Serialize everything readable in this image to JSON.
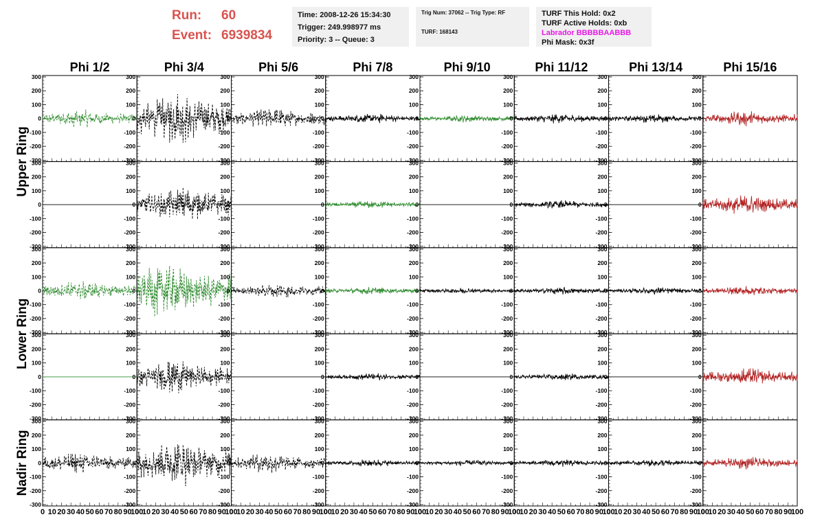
{
  "header": {
    "run_label": "Run:",
    "run_value": "60",
    "event_label": "Event:",
    "event_value": "6939834",
    "time_text": "Time: 2008-12-26 15:34:30",
    "trigger_text": "Trigger: 249.998977 ms",
    "priority_text": "Priority: 3 -- Queue: 3",
    "trig_num_text": "Trig Num: 37062 -- Trig Type: RF",
    "turf_text": "TURF: 168143",
    "turf_hold_text": "TURF This Hold: 0x2",
    "turf_active_text": "TURF Active Holds: 0xb",
    "labrador_text": "Labrador BBBBBAABBB",
    "phi_mask_text": "Phi Mask: 0x3f"
  },
  "chart_data": {
    "type": "line",
    "title": "",
    "columns": [
      "Phi 1/2",
      "Phi 3/4",
      "Phi 5/6",
      "Phi 7/8",
      "Phi 9/10",
      "Phi 11/12",
      "Phi 13/14",
      "Phi 15/16"
    ],
    "rows": [
      "Upper Ring",
      "Upper Ring",
      "Lower Ring",
      "Lower Ring",
      "Nadir Ring"
    ],
    "row_labels": [
      {
        "label": "Upper Ring",
        "rows": [
          0,
          1
        ]
      },
      {
        "label": "Lower Ring",
        "rows": [
          2,
          3
        ]
      },
      {
        "label": "Nadir Ring",
        "rows": [
          4
        ]
      }
    ],
    "xlim": [
      0,
      100
    ],
    "ylim": [
      -310,
      310
    ],
    "x_ticks": [
      "0",
      "10",
      "20",
      "30",
      "40",
      "50",
      "60",
      "70",
      "80",
      "90",
      "100"
    ],
    "y_ticks": [
      "300",
      "200",
      "100",
      "0",
      "-100",
      "-200",
      "-300"
    ],
    "colors": {
      "black": "#000000",
      "green": "#2e8b2e",
      "red": "#b22222",
      "accent": "#d9534f"
    },
    "panels": [
      {
        "row": 0,
        "col": 0,
        "amp": 70,
        "color": "green",
        "dashed": true,
        "peak": 40
      },
      {
        "row": 0,
        "col": 1,
        "amp": 220,
        "color": "black",
        "dashed": true,
        "peak": 40
      },
      {
        "row": 0,
        "col": 2,
        "amp": 90,
        "color": "black",
        "dashed": true,
        "peak": 45
      },
      {
        "row": 0,
        "col": 3,
        "amp": 40,
        "color": "black",
        "dashed": false,
        "peak": 50
      },
      {
        "row": 0,
        "col": 4,
        "amp": 30,
        "color": "green",
        "dashed": false,
        "peak": 50
      },
      {
        "row": 0,
        "col": 5,
        "amp": 40,
        "color": "black",
        "dashed": false,
        "peak": 50
      },
      {
        "row": 0,
        "col": 6,
        "amp": 35,
        "color": "black",
        "dashed": false,
        "peak": 50
      },
      {
        "row": 0,
        "col": 7,
        "amp": 60,
        "color": "red",
        "dashed": false,
        "peak": 45
      },
      {
        "row": 1,
        "col": 0,
        "amp": 0,
        "color": "black",
        "dashed": false,
        "peak": 50
      },
      {
        "row": 1,
        "col": 1,
        "amp": 150,
        "color": "black",
        "dashed": true,
        "peak": 50
      },
      {
        "row": 1,
        "col": 2,
        "amp": 0,
        "color": "black",
        "dashed": false,
        "peak": 50
      },
      {
        "row": 1,
        "col": 3,
        "amp": 30,
        "color": "green",
        "dashed": false,
        "peak": 50
      },
      {
        "row": 1,
        "col": 4,
        "amp": 0,
        "color": "black",
        "dashed": false,
        "peak": 50
      },
      {
        "row": 1,
        "col": 5,
        "amp": 35,
        "color": "black",
        "dashed": false,
        "peak": 50
      },
      {
        "row": 1,
        "col": 6,
        "amp": 0,
        "color": "black",
        "dashed": false,
        "peak": 50
      },
      {
        "row": 1,
        "col": 7,
        "amp": 80,
        "color": "red",
        "dashed": false,
        "peak": 45
      },
      {
        "row": 2,
        "col": 0,
        "amp": 80,
        "color": "green",
        "dashed": true,
        "peak": 40
      },
      {
        "row": 2,
        "col": 1,
        "amp": 230,
        "color": "green",
        "dashed": true,
        "peak": 30
      },
      {
        "row": 2,
        "col": 2,
        "amp": 60,
        "color": "black",
        "dashed": true,
        "peak": 50
      },
      {
        "row": 2,
        "col": 3,
        "amp": 30,
        "color": "green",
        "dashed": false,
        "peak": 50
      },
      {
        "row": 2,
        "col": 4,
        "amp": 25,
        "color": "black",
        "dashed": false,
        "peak": 50
      },
      {
        "row": 2,
        "col": 5,
        "amp": 30,
        "color": "black",
        "dashed": false,
        "peak": 50
      },
      {
        "row": 2,
        "col": 6,
        "amp": 30,
        "color": "black",
        "dashed": false,
        "peak": 50
      },
      {
        "row": 2,
        "col": 7,
        "amp": 40,
        "color": "red",
        "dashed": false,
        "peak": 45
      },
      {
        "row": 3,
        "col": 0,
        "amp": 0,
        "color": "green",
        "dashed": false,
        "peak": 50
      },
      {
        "row": 3,
        "col": 1,
        "amp": 140,
        "color": "black",
        "dashed": true,
        "peak": 40
      },
      {
        "row": 3,
        "col": 2,
        "amp": 0,
        "color": "black",
        "dashed": false,
        "peak": 50
      },
      {
        "row": 3,
        "col": 3,
        "amp": 30,
        "color": "black",
        "dashed": false,
        "peak": 50
      },
      {
        "row": 3,
        "col": 4,
        "amp": 0,
        "color": "black",
        "dashed": false,
        "peak": 50
      },
      {
        "row": 3,
        "col": 5,
        "amp": 30,
        "color": "black",
        "dashed": false,
        "peak": 50
      },
      {
        "row": 3,
        "col": 6,
        "amp": 0,
        "color": "black",
        "dashed": false,
        "peak": 50
      },
      {
        "row": 3,
        "col": 7,
        "amp": 70,
        "color": "red",
        "dashed": false,
        "peak": 50
      },
      {
        "row": 4,
        "col": 0,
        "amp": 90,
        "color": "black",
        "dashed": true,
        "peak": 40
      },
      {
        "row": 4,
        "col": 1,
        "amp": 200,
        "color": "black",
        "dashed": true,
        "peak": 40
      },
      {
        "row": 4,
        "col": 2,
        "amp": 80,
        "color": "black",
        "dashed": true,
        "peak": 40
      },
      {
        "row": 4,
        "col": 3,
        "amp": 30,
        "color": "black",
        "dashed": false,
        "peak": 50
      },
      {
        "row": 4,
        "col": 4,
        "amp": 25,
        "color": "black",
        "dashed": false,
        "peak": 50
      },
      {
        "row": 4,
        "col": 5,
        "amp": 30,
        "color": "black",
        "dashed": false,
        "peak": 50
      },
      {
        "row": 4,
        "col": 6,
        "amp": 30,
        "color": "black",
        "dashed": false,
        "peak": 50
      },
      {
        "row": 4,
        "col": 7,
        "amp": 50,
        "color": "red",
        "dashed": false,
        "peak": 45
      }
    ]
  }
}
